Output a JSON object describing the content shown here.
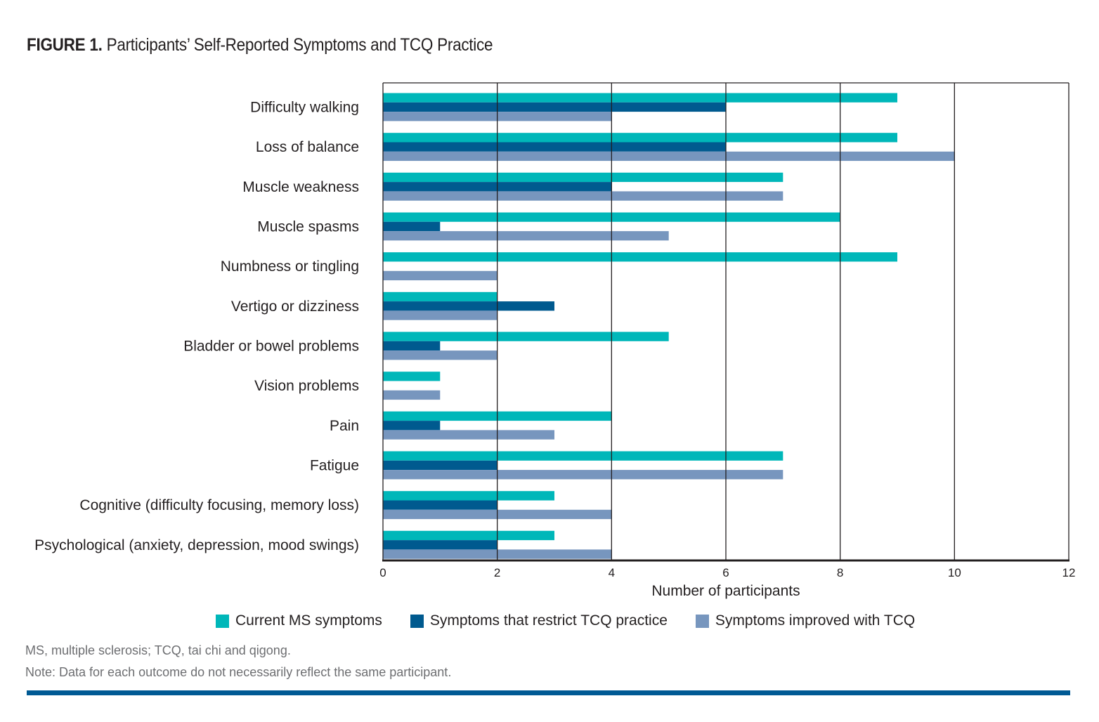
{
  "figure": {
    "label": "FIGURE 1.",
    "title": "Participants’ Self-Reported Symptoms and TCQ Practice"
  },
  "notes": {
    "abbreviations": "MS, multiple sclerosis; TCQ, tai chi and qigong.",
    "note": "Note: Data for each outcome do not necessarily reflect the same participant."
  },
  "colors": {
    "current": "#00b7b9",
    "restrict": "#005a8f",
    "improved": "#7796be",
    "rule": "#005a94"
  },
  "chart_data": {
    "type": "bar",
    "orientation": "horizontal",
    "title": "Participants’ Self-Reported Symptoms and TCQ Practice",
    "xlabel": "Number of participants",
    "ylabel": "",
    "xlim": [
      0,
      12
    ],
    "xticks": [
      0,
      2,
      4,
      6,
      8,
      10,
      12
    ],
    "grid": "vertical",
    "legend_position": "bottom",
    "categories": [
      "Difficulty walking",
      "Loss of balance",
      "Muscle weakness",
      "Muscle spasms",
      "Numbness or tingling",
      "Vertigo or dizziness",
      "Bladder or bowel problems",
      "Vision problems",
      "Pain",
      "Fatigue",
      "Cognitive (difficulty focusing, memory loss)",
      "Psychological  (anxiety, depression, mood swings)"
    ],
    "series": [
      {
        "name": "Current MS symptoms",
        "color": "#00b7b9",
        "values": [
          9,
          9,
          7,
          8,
          9,
          2,
          5,
          1,
          4,
          7,
          3,
          3
        ]
      },
      {
        "name": "Symptoms that restrict TCQ practice",
        "color": "#005a8f",
        "values": [
          6,
          6,
          4,
          1,
          0,
          3,
          1,
          0,
          1,
          2,
          2,
          2
        ]
      },
      {
        "name": "Symptoms improved with TCQ",
        "color": "#7796be",
        "values": [
          4,
          10,
          7,
          5,
          2,
          2,
          2,
          1,
          3,
          7,
          4,
          4
        ]
      }
    ]
  }
}
